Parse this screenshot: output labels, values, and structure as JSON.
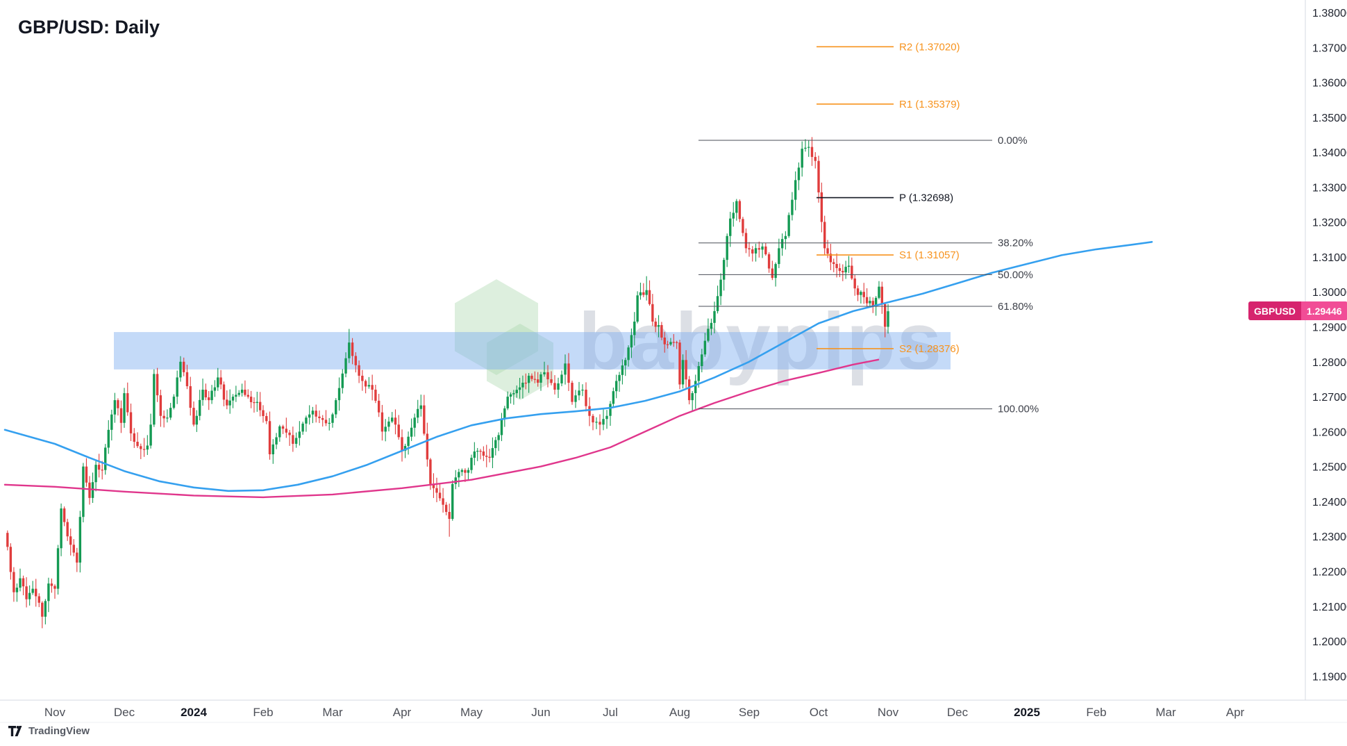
{
  "header": {
    "title": "GBP/USD: Daily"
  },
  "symbol_badge": {
    "symbol": "GBPUSD",
    "price": "1.29446"
  },
  "watermark": {
    "text": "babypips"
  },
  "footer": {
    "brand": "TradingView"
  },
  "colors": {
    "background": "#ffffff",
    "candle_up": "#149a53",
    "candle_down": "#e03c3c",
    "trendline_blue": "#35a0ef",
    "ma_pink": "#e0368c",
    "zone_fill": "rgba(124,174,240,0.45)",
    "fib_line": "#4a4e57",
    "fib_text": "#3e414a",
    "pivot_orange": "#f7931e",
    "pivot_black": "#131722",
    "axis_text": "#1e222d",
    "time_month": "#4c4f57",
    "time_year": "#131722",
    "axis_line": "#d6d9e0",
    "badge_symbol_bg": "#d6246e",
    "badge_price_bg": "#f14d96",
    "watermark_text": "rgba(155,164,180,0.35)",
    "watermark_hex": "rgba(171,214,173,0.40)"
  },
  "chart_data": {
    "type": "candlestick",
    "title": "GBP/USD: Daily",
    "symbol": "GBP/USD",
    "timeframe": "Daily",
    "last_price": 1.29446,
    "price_axis": {
      "min": 1.19,
      "max": 1.38,
      "tick_labels": [
        "1.38000",
        "1.37000",
        "1.36000",
        "1.35000",
        "1.34000",
        "1.33000",
        "1.32000",
        "1.31000",
        "1.30000",
        "1.29000",
        "1.28000",
        "1.27000",
        "1.26000",
        "1.25000",
        "1.24000",
        "1.23000",
        "1.22000",
        "1.21000",
        "1.20000",
        "1.19000"
      ]
    },
    "time_axis": {
      "ticks": [
        {
          "label": "Nov",
          "year": false
        },
        {
          "label": "Dec",
          "year": false
        },
        {
          "label": "2024",
          "year": true
        },
        {
          "label": "Feb",
          "year": false
        },
        {
          "label": "Mar",
          "year": false
        },
        {
          "label": "Apr",
          "year": false
        },
        {
          "label": "May",
          "year": false
        },
        {
          "label": "Jun",
          "year": false
        },
        {
          "label": "Jul",
          "year": false
        },
        {
          "label": "Aug",
          "year": false
        },
        {
          "label": "Sep",
          "year": false
        },
        {
          "label": "Oct",
          "year": false
        },
        {
          "label": "Nov",
          "year": false
        },
        {
          "label": "Dec",
          "year": false
        },
        {
          "label": "2025",
          "year": true
        },
        {
          "label": "Feb",
          "year": false
        },
        {
          "label": "Mar",
          "year": false
        },
        {
          "label": "Apr",
          "year": false
        }
      ]
    },
    "fib_retracement": {
      "levels": [
        {
          "label": "0.00%",
          "price": 1.3434
        },
        {
          "label": "38.20%",
          "price": 1.31402
        },
        {
          "label": "50.00%",
          "price": 1.30495
        },
        {
          "label": "61.80%",
          "price": 1.29588
        },
        {
          "label": "100.00%",
          "price": 1.2665
        }
      ]
    },
    "pivot_levels": [
      {
        "label": "R2 (1.37020)",
        "price": 1.3702,
        "tone": "orange"
      },
      {
        "label": "R1 (1.35379)",
        "price": 1.35379,
        "tone": "orange"
      },
      {
        "label": "P (1.32698)",
        "price": 1.32698,
        "tone": "black"
      },
      {
        "label": "S1 (1.31057)",
        "price": 1.31057,
        "tone": "orange"
      },
      {
        "label": "S2 (1.28376)",
        "price": 1.28376,
        "tone": "orange"
      }
    ],
    "highlight_zone": {
      "price_top": 1.2885,
      "price_bottom": 1.2778,
      "m_start": 0.85,
      "m_end": 12.9
    },
    "trendline_blue": {
      "points": [
        [
          -0.72,
          1.2605
        ],
        [
          0,
          1.2565
        ],
        [
          0.5,
          1.2525
        ],
        [
          1,
          1.2487
        ],
        [
          1.5,
          1.2458
        ],
        [
          2,
          1.244
        ],
        [
          2.5,
          1.243
        ],
        [
          3,
          1.2432
        ],
        [
          3.5,
          1.2448
        ],
        [
          4,
          1.2472
        ],
        [
          4.5,
          1.2505
        ],
        [
          5,
          1.2545
        ],
        [
          5.5,
          1.2585
        ],
        [
          6,
          1.2618
        ],
        [
          6.5,
          1.2638
        ],
        [
          7,
          1.265
        ],
        [
          7.5,
          1.2658
        ],
        [
          8,
          1.2668
        ],
        [
          8.5,
          1.2688
        ],
        [
          9,
          1.2715
        ],
        [
          9.5,
          1.2755
        ],
        [
          10,
          1.28
        ],
        [
          10.5,
          1.2855
        ],
        [
          11,
          1.291
        ],
        [
          11.5,
          1.2945
        ],
        [
          12,
          1.297
        ],
        [
          12.5,
          1.2995
        ],
        [
          13,
          1.3025
        ],
        [
          13.5,
          1.3055
        ],
        [
          14,
          1.308
        ],
        [
          14.5,
          1.3105
        ],
        [
          15,
          1.3122
        ],
        [
          15.5,
          1.3135
        ],
        [
          15.8,
          1.3143
        ]
      ]
    },
    "ma_pink": {
      "points": [
        [
          -0.72,
          1.2448
        ],
        [
          0,
          1.2442
        ],
        [
          1,
          1.2428
        ],
        [
          2,
          1.2417
        ],
        [
          3,
          1.2412
        ],
        [
          4,
          1.242
        ],
        [
          5,
          1.2438
        ],
        [
          6,
          1.2462
        ],
        [
          7,
          1.25
        ],
        [
          7.5,
          1.2525
        ],
        [
          8,
          1.2555
        ],
        [
          8.5,
          1.26
        ],
        [
          9,
          1.2645
        ],
        [
          9.5,
          1.2682
        ],
        [
          10,
          1.2715
        ],
        [
          10.5,
          1.2745
        ],
        [
          11,
          1.2768
        ],
        [
          11.5,
          1.2792
        ],
        [
          11.86,
          1.2806
        ]
      ]
    },
    "candles": {
      "month_day_starts": [
        15,
        37,
        58,
        81,
        102,
        123,
        145,
        168,
        188,
        211,
        233,
        254,
        277
      ],
      "open_first": 1.231,
      "close_anchors": [
        [
          0,
          1.227
        ],
        [
          2,
          1.214
        ],
        [
          4,
          1.218
        ],
        [
          6,
          1.212
        ],
        [
          8,
          1.215
        ],
        [
          10,
          1.211
        ],
        [
          11,
          1.207
        ],
        [
          13,
          1.2165
        ],
        [
          15,
          1.215
        ],
        [
          17,
          1.238
        ],
        [
          19,
          1.23
        ],
        [
          22,
          1.2225
        ],
        [
          24,
          1.25
        ],
        [
          26,
          1.241
        ],
        [
          28,
          1.2505
        ],
        [
          30,
          1.249
        ],
        [
          32,
          1.2605
        ],
        [
          34,
          1.269
        ],
        [
          36,
          1.2625
        ],
        [
          37,
          1.271
        ],
        [
          39,
          1.2595
        ],
        [
          42,
          1.255
        ],
        [
          44,
          1.256
        ],
        [
          45,
          1.262
        ],
        [
          46,
          1.2765
        ],
        [
          48,
          1.2645
        ],
        [
          50,
          1.264
        ],
        [
          52,
          1.27
        ],
        [
          54,
          1.28
        ],
        [
          56,
          1.273
        ],
        [
          58,
          1.262
        ],
        [
          61,
          1.272
        ],
        [
          63,
          1.269
        ],
        [
          66,
          1.2755
        ],
        [
          69,
          1.2675
        ],
        [
          71,
          1.27
        ],
        [
          74,
          1.272
        ],
        [
          76,
          1.27
        ],
        [
          79,
          1.2685
        ],
        [
          82,
          1.263
        ],
        [
          83,
          1.2535
        ],
        [
          86,
          1.2615
        ],
        [
          89,
          1.259
        ],
        [
          90,
          1.2565
        ],
        [
          92,
          1.26
        ],
        [
          96,
          1.266
        ],
        [
          101,
          1.2625
        ],
        [
          103,
          1.269
        ],
        [
          106,
          1.281
        ],
        [
          107,
          1.2855
        ],
        [
          109,
          1.279
        ],
        [
          111,
          1.2745
        ],
        [
          114,
          1.272
        ],
        [
          116,
          1.2655
        ],
        [
          117,
          1.26
        ],
        [
          120,
          1.264
        ],
        [
          121,
          1.262
        ],
        [
          123,
          1.2545
        ],
        [
          127,
          1.264
        ],
        [
          129,
          1.2675
        ],
        [
          132,
          1.245
        ],
        [
          134,
          1.2425
        ],
        [
          137,
          1.237
        ],
        [
          138,
          1.235
        ],
        [
          139,
          1.245
        ],
        [
          142,
          1.249
        ],
        [
          144,
          1.249
        ],
        [
          145,
          1.2525
        ],
        [
          147,
          1.2545
        ],
        [
          151,
          1.2525
        ],
        [
          154,
          1.259
        ],
        [
          157,
          1.27
        ],
        [
          159,
          1.271
        ],
        [
          162,
          1.274
        ],
        [
          164,
          1.276
        ],
        [
          167,
          1.274
        ],
        [
          169,
          1.277
        ],
        [
          172,
          1.272
        ],
        [
          175,
          1.2795
        ],
        [
          177,
          1.2685
        ],
        [
          180,
          1.272
        ],
        [
          182,
          1.2645
        ],
        [
          185,
          1.262
        ],
        [
          187,
          1.2645
        ],
        [
          190,
          1.2745
        ],
        [
          193,
          1.2805
        ],
        [
          196,
          1.2915
        ],
        [
          197,
          1.299
        ],
        [
          200,
          1.3005
        ],
        [
          202,
          1.2915
        ],
        [
          204,
          1.2905
        ],
        [
          206,
          1.285
        ],
        [
          210,
          1.2855
        ],
        [
          211,
          1.2735
        ],
        [
          212,
          1.2805
        ],
        [
          214,
          1.269
        ],
        [
          216,
          1.2745
        ],
        [
          219,
          1.286
        ],
        [
          222,
          1.2945
        ],
        [
          224,
          1.3035
        ],
        [
          227,
          1.321
        ],
        [
          229,
          1.326
        ],
        [
          232,
          1.3125
        ],
        [
          234,
          1.311
        ],
        [
          237,
          1.313
        ],
        [
          240,
          1.304
        ],
        [
          242,
          1.3125
        ],
        [
          244,
          1.316
        ],
        [
          247,
          1.332
        ],
        [
          249,
          1.341
        ],
        [
          251,
          1.3415
        ],
        [
          253,
          1.3375
        ],
        [
          254,
          1.3285
        ],
        [
          256,
          1.3125
        ],
        [
          258,
          1.3085
        ],
        [
          261,
          1.306
        ],
        [
          264,
          1.3075
        ],
        [
          266,
          1.301
        ],
        [
          269,
          1.2985
        ],
        [
          272,
          1.296
        ],
        [
          274,
          1.3015
        ],
        [
          276,
          1.29
        ],
        [
          277,
          1.29446
        ]
      ],
      "extremes": [
        {
          "d": 11,
          "low": 1.2037
        },
        {
          "d": 107,
          "high": 1.2894
        },
        {
          "d": 138,
          "low": 1.2299
        },
        {
          "d": 200,
          "high": 1.3045
        },
        {
          "d": 216,
          "low": 1.2665
        },
        {
          "d": 229,
          "high": 1.3266
        },
        {
          "d": 251,
          "high": 1.3434
        },
        {
          "d": 254,
          "high": 1.339
        },
        {
          "d": 276,
          "low": 1.287
        }
      ]
    }
  }
}
